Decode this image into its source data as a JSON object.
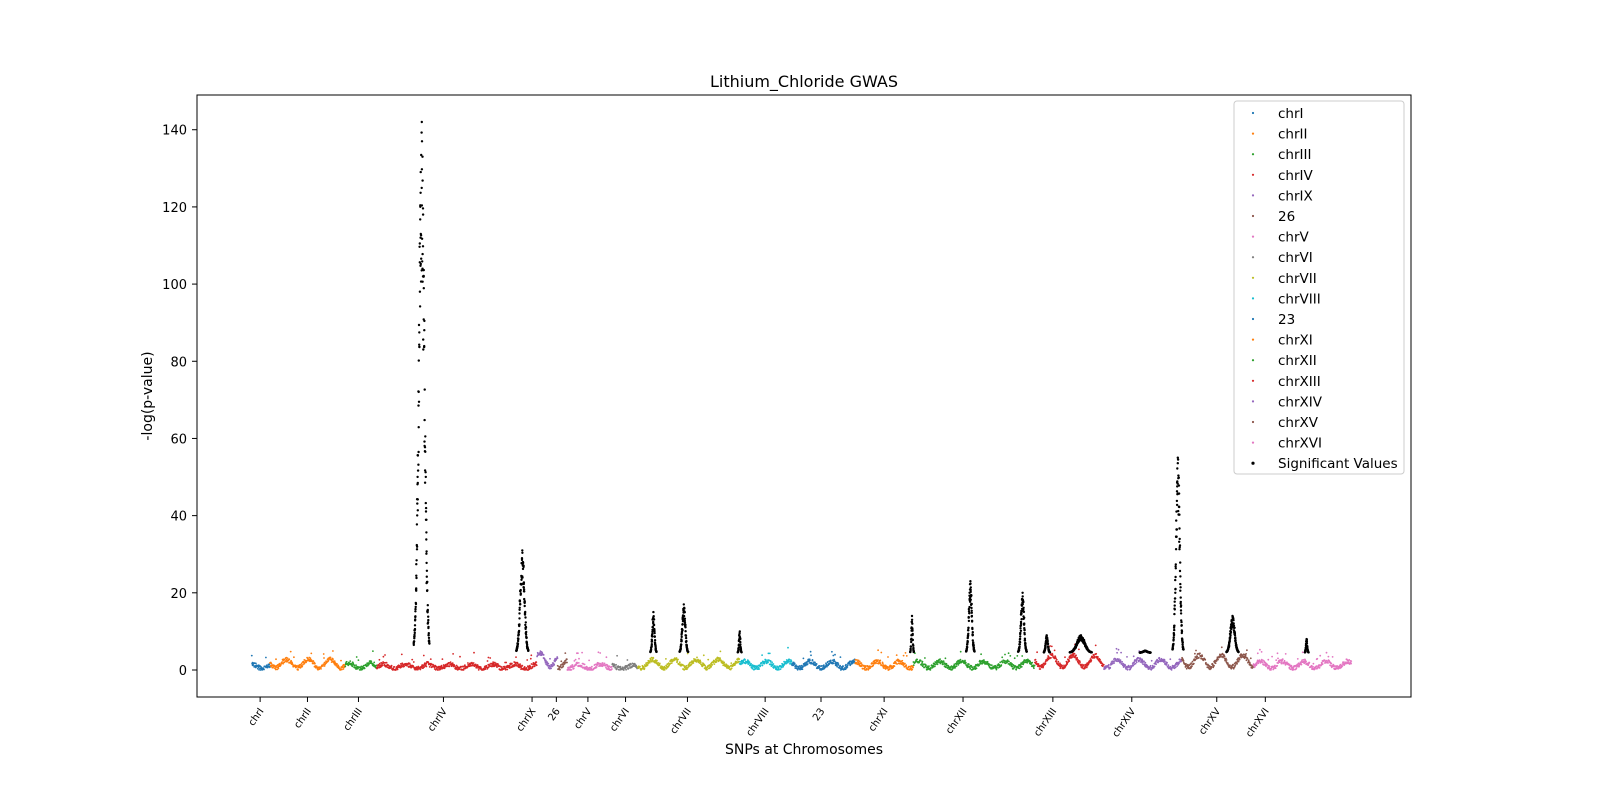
{
  "chart_data": {
    "type": "scatter",
    "title": "Lithium_Chloride GWAS",
    "xlabel": "SNPs at Chromosomes",
    "ylabel": "-log(p-value)",
    "ylim": [
      -7,
      149
    ],
    "xlim": [
      0,
      1000
    ],
    "yticks": [
      0,
      20,
      40,
      60,
      80,
      100,
      120,
      140
    ],
    "grid": false,
    "legend_position": "top-right",
    "significant_color": "#000000",
    "significant_label": "Significant Values",
    "chromosomes": [
      {
        "name": "chrI",
        "start": 45,
        "end": 60,
        "base": 1.0,
        "color": "#1f77b4"
      },
      {
        "name": "chrII",
        "start": 60,
        "end": 122,
        "base": 1.8,
        "color": "#ff7f0e"
      },
      {
        "name": "chrIII",
        "start": 122,
        "end": 148,
        "base": 1.2,
        "color": "#2ca02c"
      },
      {
        "name": "chrIV",
        "start": 148,
        "end": 280,
        "base": 1.0,
        "color": "#d62728"
      },
      {
        "name": "chrIX",
        "start": 280,
        "end": 297,
        "base": 3.0,
        "color": "#9467bd"
      },
      {
        "name": "26",
        "start": 297,
        "end": 305,
        "base": 1.8,
        "color": "#8c564b"
      },
      {
        "name": "chrV",
        "start": 305,
        "end": 342,
        "base": 1.0,
        "color": "#e377c2"
      },
      {
        "name": "chrVI",
        "start": 342,
        "end": 363,
        "base": 0.8,
        "color": "#7f7f7f"
      },
      {
        "name": "chrVII",
        "start": 363,
        "end": 447,
        "base": 1.8,
        "color": "#bcbd22"
      },
      {
        "name": "chrVIII",
        "start": 447,
        "end": 490,
        "base": 1.5,
        "color": "#17becf"
      },
      {
        "name": "23",
        "start": 490,
        "end": 542,
        "base": 1.5,
        "color": "#1f77b4"
      },
      {
        "name": "chrXI",
        "start": 542,
        "end": 590,
        "base": 1.5,
        "color": "#ff7f0e"
      },
      {
        "name": "chrXII",
        "start": 590,
        "end": 690,
        "base": 1.5,
        "color": "#2ca02c"
      },
      {
        "name": "chrXIII",
        "start": 690,
        "end": 747,
        "base": 2.5,
        "color": "#d62728"
      },
      {
        "name": "chrXIV",
        "start": 747,
        "end": 811,
        "base": 1.8,
        "color": "#9467bd"
      },
      {
        "name": "chrXV",
        "start": 811,
        "end": 870,
        "base": 2.5,
        "color": "#8c564b"
      },
      {
        "name": "chrXVI",
        "start": 870,
        "end": 951,
        "base": 1.5,
        "color": "#e377c2"
      }
    ],
    "xtick_labels": [
      {
        "label": "chrI",
        "x": 52
      },
      {
        "label": "chrII",
        "x": 91
      },
      {
        "label": "chrIII",
        "x": 133
      },
      {
        "label": "chrIV",
        "x": 203
      },
      {
        "label": "chrIX",
        "x": 276
      },
      {
        "label": "26",
        "x": 296
      },
      {
        "label": "chrV",
        "x": 322
      },
      {
        "label": "chrVI",
        "x": 353
      },
      {
        "label": "chrVII",
        "x": 404
      },
      {
        "label": "chrVIII",
        "x": 468
      },
      {
        "label": "23",
        "x": 514
      },
      {
        "label": "chrXI",
        "x": 566
      },
      {
        "label": "chrXII",
        "x": 631
      },
      {
        "label": "chrXIII",
        "x": 705
      },
      {
        "label": "chrXIV",
        "x": 770
      },
      {
        "label": "chrXV",
        "x": 840
      },
      {
        "label": "chrXVI",
        "x": 880
      }
    ],
    "significant_peaks": [
      {
        "center": 185,
        "height": 142,
        "width": 13
      },
      {
        "center": 268,
        "height": 31,
        "width": 10
      },
      {
        "center": 376,
        "height": 15,
        "width": 5
      },
      {
        "center": 401,
        "height": 17,
        "width": 7
      },
      {
        "center": 447,
        "height": 10,
        "width": 3
      },
      {
        "center": 589,
        "height": 14,
        "width": 3
      },
      {
        "center": 637,
        "height": 23,
        "width": 7
      },
      {
        "center": 680,
        "height": 20,
        "width": 7
      },
      {
        "center": 700,
        "height": 9,
        "width": 5
      },
      {
        "center": 728,
        "height": 9,
        "width": 18
      },
      {
        "center": 781,
        "height": 5,
        "width": 9
      },
      {
        "center": 808,
        "height": 55,
        "width": 9
      },
      {
        "center": 853,
        "height": 14,
        "width": 10
      },
      {
        "center": 914,
        "height": 8,
        "width": 3
      }
    ]
  }
}
